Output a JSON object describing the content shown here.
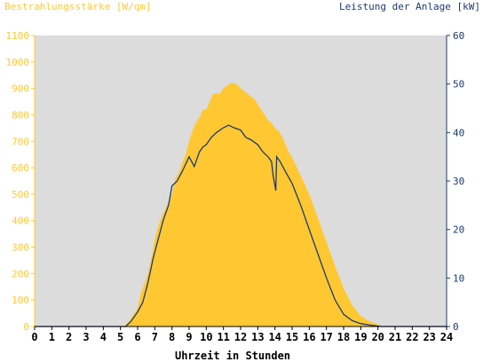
{
  "chart_data": {
    "type": "area",
    "title_left": "Bestrahlungsstärke [W/qm]",
    "title_right": "Leistung der Anlage [kW]",
    "xlabel": "Uhrzeit in Stunden",
    "x_ticks": [
      "0",
      "1",
      "2",
      "3",
      "4",
      "5",
      "6",
      "7",
      "8",
      "9",
      "10",
      "11",
      "12",
      "13",
      "14",
      "15",
      "16",
      "17",
      "18",
      "19",
      "20",
      "21",
      "22",
      "23",
      "24"
    ],
    "xlim": [
      0,
      24
    ],
    "y_left_ticks": [
      "0",
      "100",
      "200",
      "300",
      "400",
      "500",
      "600",
      "700",
      "800",
      "900",
      "1000",
      "1100"
    ],
    "ylim_left": [
      0,
      1100
    ],
    "y_right_ticks": [
      "0",
      "10",
      "20",
      "30",
      "40",
      "50",
      "60"
    ],
    "ylim_right": [
      0,
      60
    ],
    "plot_background": "#dcdcdc",
    "colors": {
      "irradiance": "#ffc832",
      "power": "#1c3a6e",
      "left_axis": "#ffc832",
      "right_axis": "#1c3a6e"
    },
    "series": [
      {
        "name": "Bestrahlungsstärke [W/qm]",
        "axis": "left",
        "style": "area",
        "x": [
          0,
          5.2,
          5.5,
          6.0,
          6.2,
          6.4,
          6.6,
          6.8,
          7.0,
          7.2,
          7.5,
          7.8,
          8.0,
          8.2,
          8.4,
          8.6,
          8.8,
          9.0,
          9.2,
          9.4,
          9.6,
          9.8,
          10.0,
          10.2,
          10.4,
          10.6,
          10.8,
          11.0,
          11.2,
          11.4,
          11.6,
          11.8,
          12.0,
          12.2,
          12.4,
          12.6,
          12.8,
          13.0,
          13.2,
          13.4,
          13.6,
          13.8,
          14.0,
          14.2,
          14.4,
          14.6,
          14.8,
          15.0,
          15.5,
          16.0,
          16.5,
          17.0,
          17.5,
          18.0,
          18.5,
          19.0,
          19.5,
          20.0,
          20.3,
          24
        ],
        "y": [
          0,
          0,
          20,
          70,
          130,
          160,
          200,
          260,
          330,
          380,
          430,
          470,
          500,
          560,
          580,
          620,
          650,
          700,
          740,
          770,
          790,
          820,
          820,
          850,
          880,
          880,
          880,
          900,
          910,
          920,
          920,
          915,
          900,
          890,
          880,
          870,
          860,
          840,
          820,
          800,
          780,
          770,
          750,
          740,
          720,
          690,
          660,
          640,
          570,
          500,
          410,
          320,
          230,
          145,
          80,
          40,
          20,
          8,
          0,
          0
        ]
      },
      {
        "name": "Leistung der Anlage [kW]",
        "axis": "right",
        "style": "line",
        "x": [
          0,
          5.3,
          5.6,
          6.0,
          6.3,
          6.6,
          6.9,
          7.2,
          7.5,
          7.8,
          8.0,
          8.3,
          8.6,
          9.0,
          9.3,
          9.6,
          9.8,
          10.0,
          10.3,
          10.6,
          11.0,
          11.3,
          11.6,
          12.0,
          12.3,
          12.6,
          12.8,
          13.0,
          13.3,
          13.6,
          13.8,
          13.9,
          14.0,
          14.05,
          14.1,
          14.3,
          14.6,
          15.0,
          15.5,
          16.0,
          16.5,
          17.0,
          17.5,
          18.0,
          18.5,
          19.0,
          19.5,
          20.0,
          20.2,
          24
        ],
        "y": [
          0,
          0,
          1,
          3,
          5,
          9,
          14,
          18,
          22,
          25,
          29,
          30,
          32,
          35,
          33,
          36,
          37,
          37.5,
          39,
          40,
          41,
          41.5,
          41,
          40.5,
          39,
          38.5,
          38,
          37.5,
          36,
          35,
          34,
          31,
          29,
          28,
          35,
          34,
          32,
          29.5,
          25,
          20,
          15,
          10,
          5.5,
          2.5,
          1.2,
          0.6,
          0.3,
          0.1,
          0,
          0
        ]
      }
    ]
  }
}
